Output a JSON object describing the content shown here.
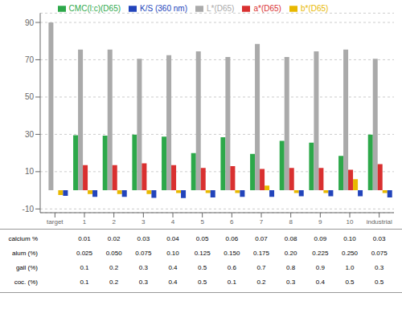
{
  "chart_data": {
    "type": "bar",
    "categories": [
      "target",
      "1",
      "2",
      "3",
      "4",
      "5",
      "6",
      "7",
      "8",
      "9",
      "10",
      "industrial"
    ],
    "series": [
      {
        "name": "CMC(l:c)(D65)",
        "color": "#2da84a",
        "values": [
          0.0,
          29.5,
          29.3,
          29.8,
          28.8,
          20.0,
          28.5,
          19.5,
          26.5,
          25.5,
          18.5,
          29.8
        ]
      },
      {
        "name": "L*(D65)",
        "color": "#aaaaaa",
        "values": [
          90.0,
          75.5,
          75.5,
          70.5,
          72.5,
          74.5,
          71.5,
          78.5,
          71.5,
          74.5,
          75.5,
          70.5
        ]
      },
      {
        "name": "a*(D65)",
        "color": "#d93030",
        "values": [
          0.0,
          13.5,
          13.5,
          14.5,
          13.5,
          12.0,
          13.0,
          11.5,
          12.0,
          12.0,
          11.0,
          14.0
        ]
      },
      {
        "name": "b*(D65)",
        "color": "#e8b800",
        "values": [
          -2.5,
          -2.0,
          -2.0,
          -2.0,
          -1.5,
          -1.5,
          -1.5,
          2.5,
          -1.5,
          -1.5,
          6.0,
          -1.5
        ]
      },
      {
        "name": "K/S (360 nm)",
        "color": "#2244bb",
        "values": [
          -3.0,
          -3.5,
          -3.5,
          -4.0,
          -4.2,
          -3.8,
          -3.5,
          -3.5,
          -3.2,
          -3.2,
          -3.2,
          -3.8
        ]
      }
    ],
    "ylim": [
      -12,
      95
    ],
    "yticks": [
      -10,
      10,
      30,
      50,
      70,
      90
    ],
    "grid": true,
    "legend": "upper center",
    "table": {
      "row_labels": [
        "calcium %",
        "alum (%)",
        "gall (%)",
        "coc. (%)"
      ],
      "rows": [
        [
          "0.01",
          "0.02",
          "0.03",
          "0.04",
          "0.05",
          "0.06",
          "0.07",
          "0.08",
          "0.09",
          "0.10",
          "0.03"
        ],
        [
          "0.025",
          "0.050",
          "0.075",
          "0.10",
          "0.125",
          "0.150",
          "0.175",
          "0.20",
          "0.225",
          "0.250",
          "0.075"
        ],
        [
          "0.1",
          "0.2",
          "0.3",
          "0.4",
          "0.5",
          "0.6",
          "0.7",
          "0.8",
          "0.9",
          "1.0",
          "0.3"
        ],
        [
          "0.1",
          "0.2",
          "0.3",
          "0.4",
          "0.5",
          "0.1",
          "0.2",
          "0.3",
          "0.4",
          "0.5",
          "0.5"
        ]
      ]
    }
  }
}
